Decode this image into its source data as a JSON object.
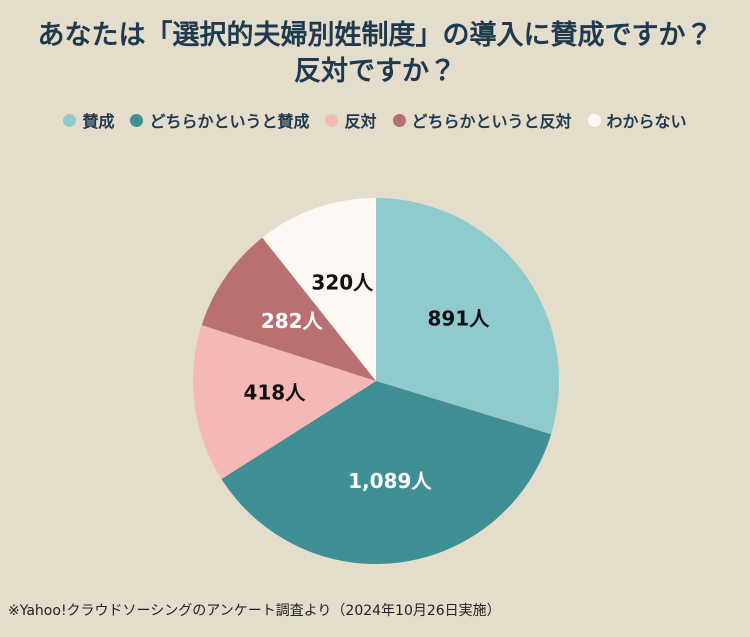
{
  "chart_data": {
    "type": "pie",
    "title": "あなたは「選択的夫婦別姓制度」の導入に賛成ですか？ 反対ですか？",
    "categories": [
      "賛成",
      "どちらかというと賛成",
      "反対",
      "どちらかというと反対",
      "わからない"
    ],
    "values": [
      891,
      1089,
      418,
      282,
      320
    ],
    "value_labels": [
      "891人",
      "1,089人",
      "418人",
      "282人",
      "320人"
    ],
    "colors": [
      "#8fcacd",
      "#3f8f95",
      "#f4b9b7",
      "#b87170",
      "#fdf8f4"
    ],
    "label_colors": [
      "#111111",
      "#ffffff",
      "#111111",
      "#ffffff",
      "#111111"
    ],
    "note": "※Yahoo!クラウドソーシングのアンケート調査より（2024年10月26日実施）"
  }
}
